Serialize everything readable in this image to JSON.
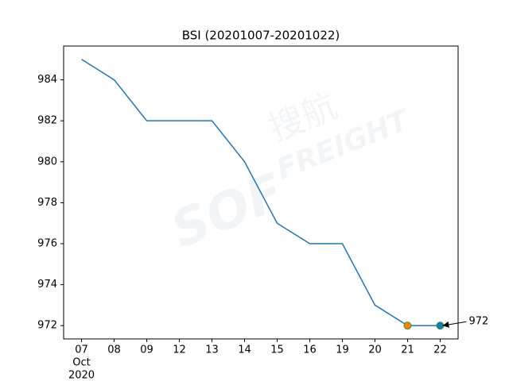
{
  "chart_data": {
    "type": "line",
    "title": "BSI (20201007-20201022)",
    "categories": [
      "07",
      "08",
      "09",
      "12",
      "13",
      "14",
      "15",
      "16",
      "19",
      "20",
      "21",
      "22"
    ],
    "x_month_label": "Oct",
    "x_year_label": "2020",
    "series": [
      {
        "name": "BSI",
        "color": "#1f77b4",
        "values": [
          985,
          984,
          982,
          982,
          982,
          980,
          977,
          976,
          976,
          973,
          972,
          972
        ]
      }
    ],
    "markers": [
      {
        "x": "21",
        "value": 972,
        "color": "#ff7f0e",
        "edge_color": "#2ca02c"
      },
      {
        "x": "22",
        "value": 972,
        "color": "#1f77b4",
        "edge_color": "#2ca02c"
      }
    ],
    "annotation": {
      "label": "972",
      "x": "22",
      "value": 972
    },
    "watermark": {
      "logo": "SOF",
      "cn": "搜航",
      "en": "FREIGHT"
    },
    "ylim": [
      971.35,
      985.65
    ],
    "yticks": [
      972,
      974,
      976,
      978,
      980,
      982,
      984
    ],
    "grid": false
  }
}
